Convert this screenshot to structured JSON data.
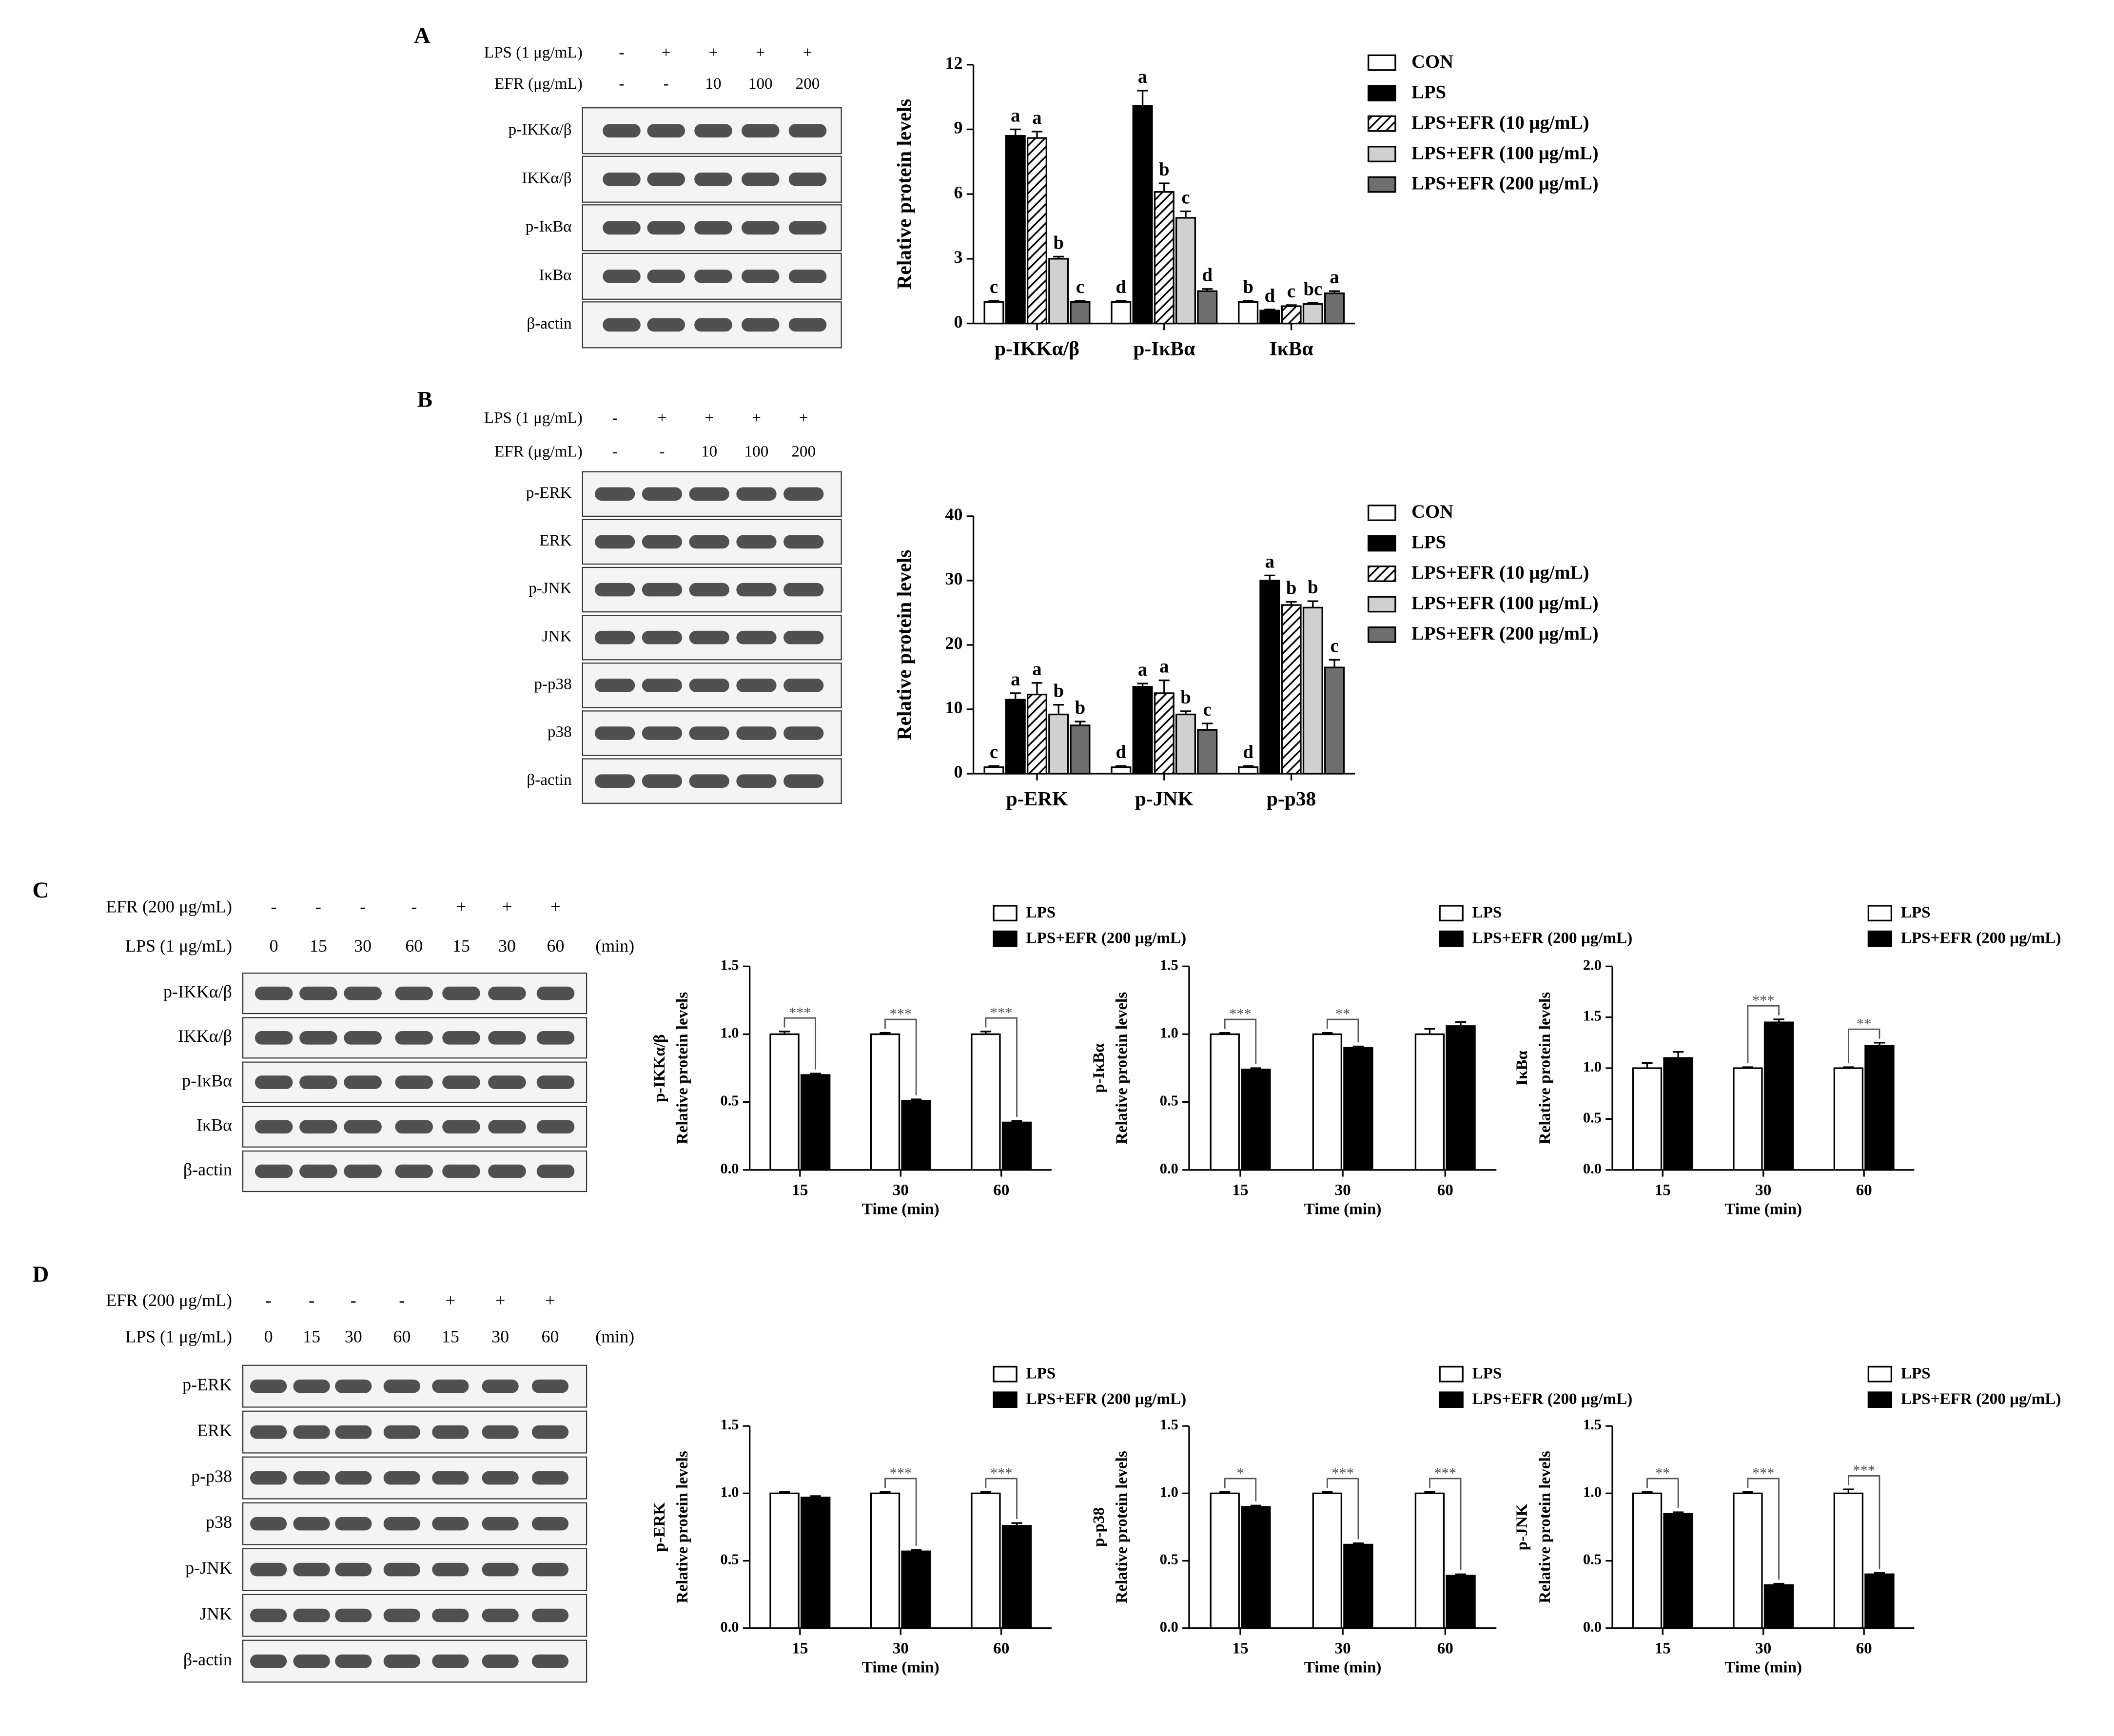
{
  "blots": [
    {
      "letter": "A",
      "conditions": [
        {
          "label": "LPS (1 μg/mL)",
          "lanes": [
            "-",
            "+",
            "+",
            "+",
            "+"
          ]
        },
        {
          "label": "EFR (μg/mL)",
          "lanes": [
            "-",
            "-",
            "10",
            "100",
            "200"
          ]
        }
      ],
      "bands": [
        "p-IKKα/β",
        "IKKα/β",
        "p-IκBα",
        "IκBα",
        "β-actin"
      ]
    },
    {
      "letter": "B",
      "conditions": [
        {
          "label": "LPS (1 μg/mL)",
          "lanes": [
            "-",
            "+",
            "+",
            "+",
            "+"
          ]
        },
        {
          "label": "EFR (μg/mL)",
          "lanes": [
            "-",
            "-",
            "10",
            "100",
            "200"
          ]
        }
      ],
      "bands": [
        "p-ERK",
        "ERK",
        "p-JNK",
        "JNK",
        "p-p38",
        "p38",
        "β-actin"
      ]
    },
    {
      "letter": "C",
      "conditions": [
        {
          "label": "EFR (200 μg/mL)",
          "lanes": [
            "-",
            "-",
            "-",
            "-",
            "+",
            "+",
            "+"
          ]
        },
        {
          "label": "LPS (1 μg/mL)",
          "lanes": [
            "0",
            "15",
            "30",
            "60",
            "15",
            "30",
            "60"
          ]
        }
      ],
      "unit": "(min)",
      "bands": [
        "p-IKKα/β",
        "IKKα/β",
        "p-IκBα",
        "IκBα",
        "β-actin"
      ]
    },
    {
      "letter": "D",
      "conditions": [
        {
          "label": "EFR (200 μg/mL)",
          "lanes": [
            "-",
            "-",
            "-",
            "-",
            "+",
            "+",
            "+"
          ]
        },
        {
          "label": "LPS (1 μg/mL)",
          "lanes": [
            "0",
            "15",
            "30",
            "60",
            "15",
            "30",
            "60"
          ]
        }
      ],
      "unit": "(min)",
      "bands": [
        "p-ERK",
        "ERK",
        "p-p38",
        "p38",
        "p-JNK",
        "JNK",
        "β-actin"
      ]
    }
  ],
  "chart_data": [
    {
      "type": "bar",
      "ylabel": "Relative protein levels",
      "categories": [
        "p-IKKα/β",
        "p-IκBα",
        "IκBα"
      ],
      "ylim": [
        0,
        12
      ],
      "yticks": [
        0,
        3,
        6,
        9,
        12
      ],
      "series": [
        {
          "name": "CON",
          "color": "#ffffff",
          "values": [
            1,
            1,
            1
          ],
          "errors": [
            0.05,
            0.05,
            0.05
          ],
          "letters": [
            "c",
            "d",
            "b"
          ]
        },
        {
          "name": "LPS",
          "color": "#000000",
          "values": [
            8.7,
            10.1,
            0.6
          ],
          "errors": [
            0.3,
            0.7,
            0.05
          ],
          "letters": [
            "a",
            "a",
            "d"
          ]
        },
        {
          "name": "LPS+EFR (10 μg/mL)",
          "color": "#000000",
          "pattern": "hatch",
          "values": [
            8.6,
            6.1,
            0.8
          ],
          "errors": [
            0.3,
            0.4,
            0.05
          ],
          "letters": [
            "a",
            "b",
            "c"
          ]
        },
        {
          "name": "LPS+EFR (100 μg/mL)",
          "color": "#d0d0d0",
          "values": [
            3.0,
            4.9,
            0.9
          ],
          "errors": [
            0.1,
            0.3,
            0.05
          ],
          "letters": [
            "b",
            "c",
            "bc"
          ]
        },
        {
          "name": "LPS+EFR (200 μg/mL)",
          "color": "#6e6e6e",
          "values": [
            1.0,
            1.5,
            1.4
          ],
          "errors": [
            0.05,
            0.1,
            0.1
          ],
          "letters": [
            "c",
            "d",
            "a"
          ]
        }
      ]
    },
    {
      "type": "bar",
      "ylabel": "Relative protein levels",
      "categories": [
        "p-ERK",
        "p-JNK",
        "p-p38"
      ],
      "ylim": [
        0,
        40
      ],
      "yticks": [
        0,
        10,
        20,
        30,
        40
      ],
      "series": [
        {
          "name": "CON",
          "color": "#ffffff",
          "values": [
            1,
            1,
            1
          ],
          "errors": [
            0.2,
            0.2,
            0.2
          ],
          "letters": [
            "c",
            "d",
            "d"
          ]
        },
        {
          "name": "LPS",
          "color": "#000000",
          "values": [
            11.5,
            13.5,
            30
          ],
          "errors": [
            1.0,
            0.5,
            0.8
          ],
          "letters": [
            "a",
            "a",
            "a"
          ]
        },
        {
          "name": "LPS+EFR (10 μg/mL)",
          "color": "#000000",
          "pattern": "hatch",
          "values": [
            12.3,
            12.5,
            26.2
          ],
          "errors": [
            1.8,
            2.0,
            0.5
          ],
          "letters": [
            "a",
            "a",
            "b"
          ]
        },
        {
          "name": "LPS+EFR (100 μg/mL)",
          "color": "#d0d0d0",
          "values": [
            9.2,
            9.2,
            25.8
          ],
          "errors": [
            1.5,
            0.5,
            1.0
          ],
          "letters": [
            "b",
            "b",
            "b"
          ]
        },
        {
          "name": "LPS+EFR (200 μg/mL)",
          "color": "#6e6e6e",
          "values": [
            7.5,
            6.8,
            16.5
          ],
          "errors": [
            0.6,
            1.0,
            1.2
          ],
          "letters": [
            "b",
            "c",
            "c"
          ]
        }
      ]
    },
    {
      "type": "bar",
      "ylabel": [
        "p-IKKα/β",
        "Relative protein levels"
      ],
      "xlabel": "Time (min)",
      "categories": [
        "15",
        "30",
        "60"
      ],
      "ylim": [
        0,
        1.5
      ],
      "yticks": [
        {
          "value": 0,
          "label": "0.0"
        },
        0.5,
        {
          "value": 1,
          "label": "1.0"
        },
        1.5
      ],
      "series": [
        {
          "name": "LPS",
          "color": "#ffffff",
          "values": [
            1,
            1,
            1
          ],
          "errors": [
            0.02,
            0.01,
            0.02
          ]
        },
        {
          "name": "LPS+EFR (200 μg/mL)",
          "color": "#000000",
          "values": [
            0.7,
            0.51,
            0.35
          ],
          "errors": [
            0.01,
            0.01,
            0.01
          ]
        }
      ],
      "significance": [
        "***",
        "***",
        "***"
      ]
    },
    {
      "type": "bar",
      "ylabel": [
        "p-IκBα",
        "Relative protein levels"
      ],
      "xlabel": "Time (min)",
      "categories": [
        "15",
        "30",
        "60"
      ],
      "ylim": [
        0,
        1.5
      ],
      "yticks": [
        {
          "value": 0,
          "label": "0.0"
        },
        0.5,
        {
          "value": 1,
          "label": "1.0"
        },
        1.5
      ],
      "series": [
        {
          "name": "LPS",
          "color": "#ffffff",
          "values": [
            1,
            1,
            1
          ],
          "errors": [
            0.01,
            0.01,
            0.04
          ]
        },
        {
          "name": "LPS+EFR (200 μg/mL)",
          "color": "#000000",
          "values": [
            0.74,
            0.9,
            1.06
          ],
          "errors": [
            0.01,
            0.01,
            0.03
          ]
        }
      ],
      "significance": [
        "***",
        "**",
        null
      ]
    },
    {
      "type": "bar",
      "ylabel": [
        "IκBα",
        "Relative protein levels"
      ],
      "xlabel": "Time (min)",
      "categories": [
        "15",
        "30",
        "60"
      ],
      "ylim": [
        0,
        2
      ],
      "yticks": [
        {
          "value": 0,
          "label": "0.0"
        },
        0.5,
        {
          "value": 1,
          "label": "1.0"
        },
        1.5,
        {
          "value": 2,
          "label": "2.0"
        }
      ],
      "series": [
        {
          "name": "LPS",
          "color": "#ffffff",
          "values": [
            1,
            1,
            1
          ],
          "errors": [
            0.05,
            0.01,
            0.01
          ]
        },
        {
          "name": "LPS+EFR (200 μg/mL)",
          "color": "#000000",
          "values": [
            1.1,
            1.45,
            1.22
          ],
          "errors": [
            0.06,
            0.03,
            0.03
          ]
        }
      ],
      "significance": [
        null,
        "***",
        "**"
      ]
    },
    {
      "type": "bar",
      "ylabel": [
        "p-ERK",
        "Relative protein levels"
      ],
      "xlabel": "Time (min)",
      "categories": [
        "15",
        "30",
        "60"
      ],
      "ylim": [
        0,
        1.5
      ],
      "yticks": [
        {
          "value": 0,
          "label": "0.0"
        },
        0.5,
        {
          "value": 1,
          "label": "1.0"
        },
        1.5
      ],
      "series": [
        {
          "name": "LPS",
          "color": "#ffffff",
          "values": [
            1,
            1,
            1
          ],
          "errors": [
            0.01,
            0.01,
            0.01
          ]
        },
        {
          "name": "LPS+EFR (200 μg/mL)",
          "color": "#000000",
          "values": [
            0.97,
            0.57,
            0.76
          ],
          "errors": [
            0.01,
            0.01,
            0.02
          ]
        }
      ],
      "significance": [
        null,
        "***",
        "***"
      ]
    },
    {
      "type": "bar",
      "ylabel": [
        "p-p38",
        "Relative protein levels"
      ],
      "xlabel": "Time (min)",
      "categories": [
        "15",
        "30",
        "60"
      ],
      "ylim": [
        0,
        1.5
      ],
      "yticks": [
        {
          "value": 0,
          "label": "0.0"
        },
        0.5,
        {
          "value": 1,
          "label": "1.0"
        },
        1.5
      ],
      "series": [
        {
          "name": "LPS",
          "color": "#ffffff",
          "values": [
            1,
            1,
            1
          ],
          "errors": [
            0.01,
            0.01,
            0.01
          ]
        },
        {
          "name": "LPS+EFR (200 μg/mL)",
          "color": "#000000",
          "values": [
            0.9,
            0.62,
            0.39
          ],
          "errors": [
            0.01,
            0.01,
            0.01
          ]
        }
      ],
      "significance": [
        "*",
        "***",
        "***"
      ]
    },
    {
      "type": "bar",
      "ylabel": [
        "p-JNK",
        "Relative protein levels"
      ],
      "xlabel": "Time (min)",
      "categories": [
        "15",
        "30",
        "60"
      ],
      "ylim": [
        0,
        1.5
      ],
      "yticks": [
        {
          "value": 0,
          "label": "0.0"
        },
        0.5,
        {
          "value": 1,
          "label": "1.0"
        },
        1.5
      ],
      "series": [
        {
          "name": "LPS",
          "color": "#ffffff",
          "values": [
            1,
            1,
            1
          ],
          "errors": [
            0.01,
            0.01,
            0.03
          ]
        },
        {
          "name": "LPS+EFR (200 μg/mL)",
          "color": "#000000",
          "values": [
            0.85,
            0.32,
            0.4
          ],
          "errors": [
            0.01,
            0.01,
            0.01
          ]
        }
      ],
      "significance": [
        "**",
        "***",
        "***"
      ]
    }
  ]
}
